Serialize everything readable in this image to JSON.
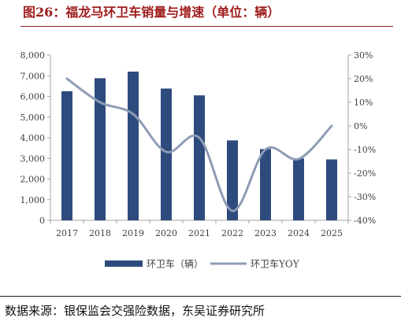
{
  "figure": {
    "title": "图26：福龙马环卫车销量与增速（单位：辆）",
    "source": "数据来源：银保监会交强险数据，东吴证券研究所"
  },
  "colors": {
    "title": "#9e1b1b",
    "bar": "#2e4b7d",
    "line": "#8e9cb4",
    "axis_text": "#404040"
  },
  "chart_data": {
    "type": "bar",
    "categories": [
      "2017",
      "2018",
      "2019",
      "2020",
      "2021",
      "2022",
      "2023",
      "2024",
      "2025"
    ],
    "series": [
      {
        "name": "环卫车（辆）",
        "type": "bar",
        "axis": "left",
        "values": [
          6250,
          6880,
          7200,
          6380,
          6050,
          3870,
          3450,
          3000,
          2950
        ]
      },
      {
        "name": "环卫车YOY",
        "type": "line",
        "axis": "right",
        "smooth": true,
        "values": [
          20,
          10,
          5,
          -11,
          -5,
          -36,
          -10,
          -14,
          0
        ]
      }
    ],
    "y_left": {
      "lim": [
        0,
        8000
      ],
      "ticks": [
        "0",
        "1,000",
        "2,000",
        "3,000",
        "4,000",
        "5,000",
        "6,000",
        "7,000",
        "8,000"
      ]
    },
    "y_right": {
      "lim": [
        -40,
        30
      ],
      "unit": "%",
      "ticks": [
        "-40%",
        "-30%",
        "-20%",
        "-10%",
        "0%",
        "10%",
        "20%",
        "30%"
      ]
    },
    "grid": false,
    "legend": "bottom"
  }
}
